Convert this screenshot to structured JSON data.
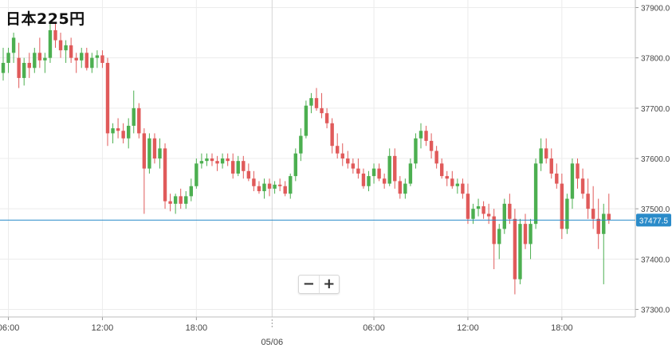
{
  "header": {
    "title": "日本225円"
  },
  "controls": {
    "zoom_out": "−",
    "zoom_in": "+"
  },
  "colors": {
    "up": "#4caf50",
    "down": "#e05a5a",
    "price_line": "#2a8bc9",
    "grid": "#ececec",
    "axis_text": "#444444"
  },
  "chart_data": {
    "type": "candlestick",
    "title": "日本225円",
    "xlabel": "",
    "ylabel": "",
    "ylim": [
      37285,
      37915
    ],
    "y_ticks": [
      "37900.0",
      "37800.0",
      "37700.0",
      "37600.0",
      "37500.0",
      "37400.0",
      "37300.0"
    ],
    "x_ticks": [
      {
        "t": 1,
        "label": "06:00"
      },
      {
        "t": 19,
        "label": "12:00"
      },
      {
        "t": 37,
        "label": "18:00"
      },
      {
        "t": 71,
        "label": "06:00"
      },
      {
        "t": 89,
        "label": "12:00"
      },
      {
        "t": 107,
        "label": "18:00"
      }
    ],
    "day_separator": {
      "t": 51.5,
      "label": "05/06"
    },
    "current_price": {
      "value": 37477.5,
      "label": "37477.5"
    },
    "candles": [
      [
        37770,
        37820,
        37755,
        37790
      ],
      [
        37790,
        37820,
        37770,
        37810
      ],
      [
        37810,
        37850,
        37790,
        37840
      ],
      [
        37800,
        37830,
        37740,
        37760
      ],
      [
        37760,
        37800,
        37745,
        37790
      ],
      [
        37790,
        37810,
        37760,
        37780
      ],
      [
        37780,
        37820,
        37770,
        37810
      ],
      [
        37810,
        37840,
        37780,
        37795
      ],
      [
        37795,
        37810,
        37770,
        37800
      ],
      [
        37800,
        37870,
        37790,
        37855
      ],
      [
        37855,
        37870,
        37820,
        37835
      ],
      [
        37835,
        37850,
        37800,
        37815
      ],
      [
        37815,
        37835,
        37790,
        37825
      ],
      [
        37825,
        37840,
        37790,
        37800
      ],
      [
        37800,
        37810,
        37770,
        37795
      ],
      [
        37795,
        37820,
        37780,
        37810
      ],
      [
        37810,
        37820,
        37775,
        37780
      ],
      [
        37780,
        37810,
        37770,
        37800
      ],
      [
        37800,
        37815,
        37780,
        37805
      ],
      [
        37805,
        37815,
        37780,
        37790
      ],
      [
        37790,
        37800,
        37625,
        37650
      ],
      [
        37650,
        37670,
        37630,
        37660
      ],
      [
        37660,
        37680,
        37640,
        37655
      ],
      [
        37655,
        37670,
        37630,
        37640
      ],
      [
        37640,
        37680,
        37620,
        37665
      ],
      [
        37665,
        37735,
        37650,
        37700
      ],
      [
        37700,
        37710,
        37640,
        37650
      ],
      [
        37650,
        37660,
        37490,
        37580
      ],
      [
        37580,
        37650,
        37570,
        37640
      ],
      [
        37640,
        37650,
        37590,
        37600
      ],
      [
        37600,
        37640,
        37580,
        37620
      ],
      [
        37620,
        37630,
        37500,
        37515
      ],
      [
        37515,
        37530,
        37495,
        37510
      ],
      [
        37510,
        37530,
        37490,
        37525
      ],
      [
        37525,
        37540,
        37500,
        37510
      ],
      [
        37510,
        37535,
        37500,
        37525
      ],
      [
        37525,
        37560,
        37515,
        37545
      ],
      [
        37545,
        37600,
        37540,
        37590
      ],
      [
        37590,
        37610,
        37580,
        37595
      ],
      [
        37595,
        37610,
        37585,
        37600
      ],
      [
        37600,
        37610,
        37585,
        37595
      ],
      [
        37595,
        37605,
        37575,
        37590
      ],
      [
        37590,
        37610,
        37580,
        37600
      ],
      [
        37600,
        37610,
        37585,
        37595
      ],
      [
        37595,
        37610,
        37560,
        37570
      ],
      [
        37570,
        37605,
        37565,
        37595
      ],
      [
        37595,
        37605,
        37560,
        37575
      ],
      [
        37575,
        37590,
        37555,
        37560
      ],
      [
        37560,
        37575,
        37535,
        37545
      ],
      [
        37545,
        37555,
        37530,
        37535
      ],
      [
        37535,
        37560,
        37520,
        37550
      ],
      [
        37550,
        37560,
        37525,
        37540
      ],
      [
        37540,
        37555,
        37530,
        37548
      ],
      [
        37548,
        37560,
        37535,
        37545
      ],
      [
        37545,
        37555,
        37525,
        37530
      ],
      [
        37530,
        37570,
        37520,
        37565
      ],
      [
        37565,
        37620,
        37555,
        37610
      ],
      [
        37610,
        37660,
        37595,
        37645
      ],
      [
        37645,
        37715,
        37640,
        37705
      ],
      [
        37705,
        37730,
        37690,
        37720
      ],
      [
        37720,
        37740,
        37695,
        37700
      ],
      [
        37700,
        37730,
        37680,
        37690
      ],
      [
        37690,
        37700,
        37660,
        37670
      ],
      [
        37670,
        37680,
        37610,
        37625
      ],
      [
        37625,
        37650,
        37600,
        37610
      ],
      [
        37610,
        37630,
        37585,
        37600
      ],
      [
        37600,
        37615,
        37580,
        37590
      ],
      [
        37590,
        37600,
        37570,
        37580
      ],
      [
        37580,
        37600,
        37560,
        37570
      ],
      [
        37570,
        37580,
        37540,
        37545
      ],
      [
        37545,
        37575,
        37535,
        37565
      ],
      [
        37565,
        37590,
        37550,
        37580
      ],
      [
        37580,
        37590,
        37555,
        37560
      ],
      [
        37560,
        37570,
        37540,
        37550
      ],
      [
        37550,
        37620,
        37545,
        37605
      ],
      [
        37605,
        37620,
        37540,
        37555
      ],
      [
        37555,
        37565,
        37520,
        37530
      ],
      [
        37530,
        37560,
        37520,
        37550
      ],
      [
        37550,
        37600,
        37545,
        37590
      ],
      [
        37590,
        37650,
        37580,
        37640
      ],
      [
        37640,
        37670,
        37620,
        37655
      ],
      [
        37655,
        37665,
        37625,
        37635
      ],
      [
        37635,
        37650,
        37600,
        37615
      ],
      [
        37615,
        37625,
        37580,
        37590
      ],
      [
        37590,
        37600,
        37560,
        37565
      ],
      [
        37565,
        37575,
        37545,
        37560
      ],
      [
        37560,
        37575,
        37540,
        37545
      ],
      [
        37545,
        37560,
        37530,
        37550
      ],
      [
        37550,
        37560,
        37520,
        37530
      ],
      [
        37530,
        37550,
        37470,
        37480
      ],
      [
        37480,
        37510,
        37470,
        37500
      ],
      [
        37500,
        37520,
        37485,
        37505
      ],
      [
        37505,
        37515,
        37480,
        37490
      ],
      [
        37490,
        37510,
        37470,
        37485
      ],
      [
        37485,
        37500,
        37380,
        37430
      ],
      [
        37430,
        37470,
        37400,
        37460
      ],
      [
        37460,
        37520,
        37450,
        37510
      ],
      [
        37510,
        37530,
        37470,
        37480
      ],
      [
        37480,
        37500,
        37330,
        37360
      ],
      [
        37360,
        37480,
        37350,
        37470
      ],
      [
        37470,
        37490,
        37420,
        37430
      ],
      [
        37430,
        37480,
        37400,
        37470
      ],
      [
        37470,
        37600,
        37460,
        37590
      ],
      [
        37590,
        37640,
        37575,
        37620
      ],
      [
        37620,
        37640,
        37590,
        37600
      ],
      [
        37600,
        37620,
        37560,
        37570
      ],
      [
        37570,
        37590,
        37540,
        37550
      ],
      [
        37550,
        37570,
        37440,
        37460
      ],
      [
        37460,
        37530,
        37450,
        37520
      ],
      [
        37520,
        37600,
        37500,
        37590
      ],
      [
        37590,
        37600,
        37540,
        37560
      ],
      [
        37560,
        37580,
        37520,
        37530
      ],
      [
        37530,
        37560,
        37480,
        37500
      ],
      [
        37500,
        37545,
        37460,
        37480
      ],
      [
        37480,
        37520,
        37420,
        37450
      ],
      [
        37450,
        37510,
        37350,
        37490
      ],
      [
        37490,
        37530,
        37470,
        37477.5
      ]
    ]
  }
}
